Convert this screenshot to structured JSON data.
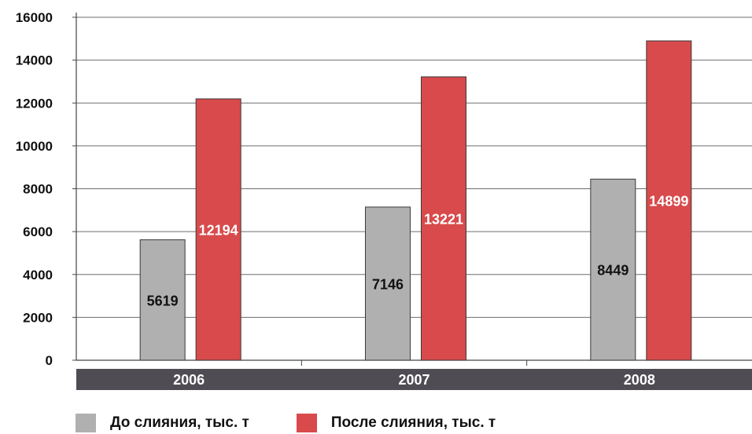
{
  "chart_data": {
    "type": "bar",
    "categories": [
      "2006",
      "2007",
      "2008"
    ],
    "series": [
      {
        "name": "До слияния, тыс. т",
        "values": [
          5619,
          7146,
          8449
        ],
        "displayed_values": [
          5619,
          7146,
          8449
        ],
        "color": "#b0b0b0",
        "label_color": "#111111"
      },
      {
        "name": "После слияния, тыс. т",
        "values": [
          12194,
          13221,
          14899
        ],
        "displayed_values": [
          12194,
          13221,
          14899
        ],
        "color": "#d84a4b",
        "label_color": "#ffffff"
      }
    ],
    "title": "",
    "xlabel": "",
    "ylabel": "",
    "ylim": [
      0,
      16000
    ],
    "yticks": [
      0,
      2000,
      4000,
      6000,
      8000,
      10000,
      12000,
      14000,
      16000
    ],
    "grid": true,
    "legend_position": "bottom",
    "category_band_color": "#4f4c53"
  }
}
